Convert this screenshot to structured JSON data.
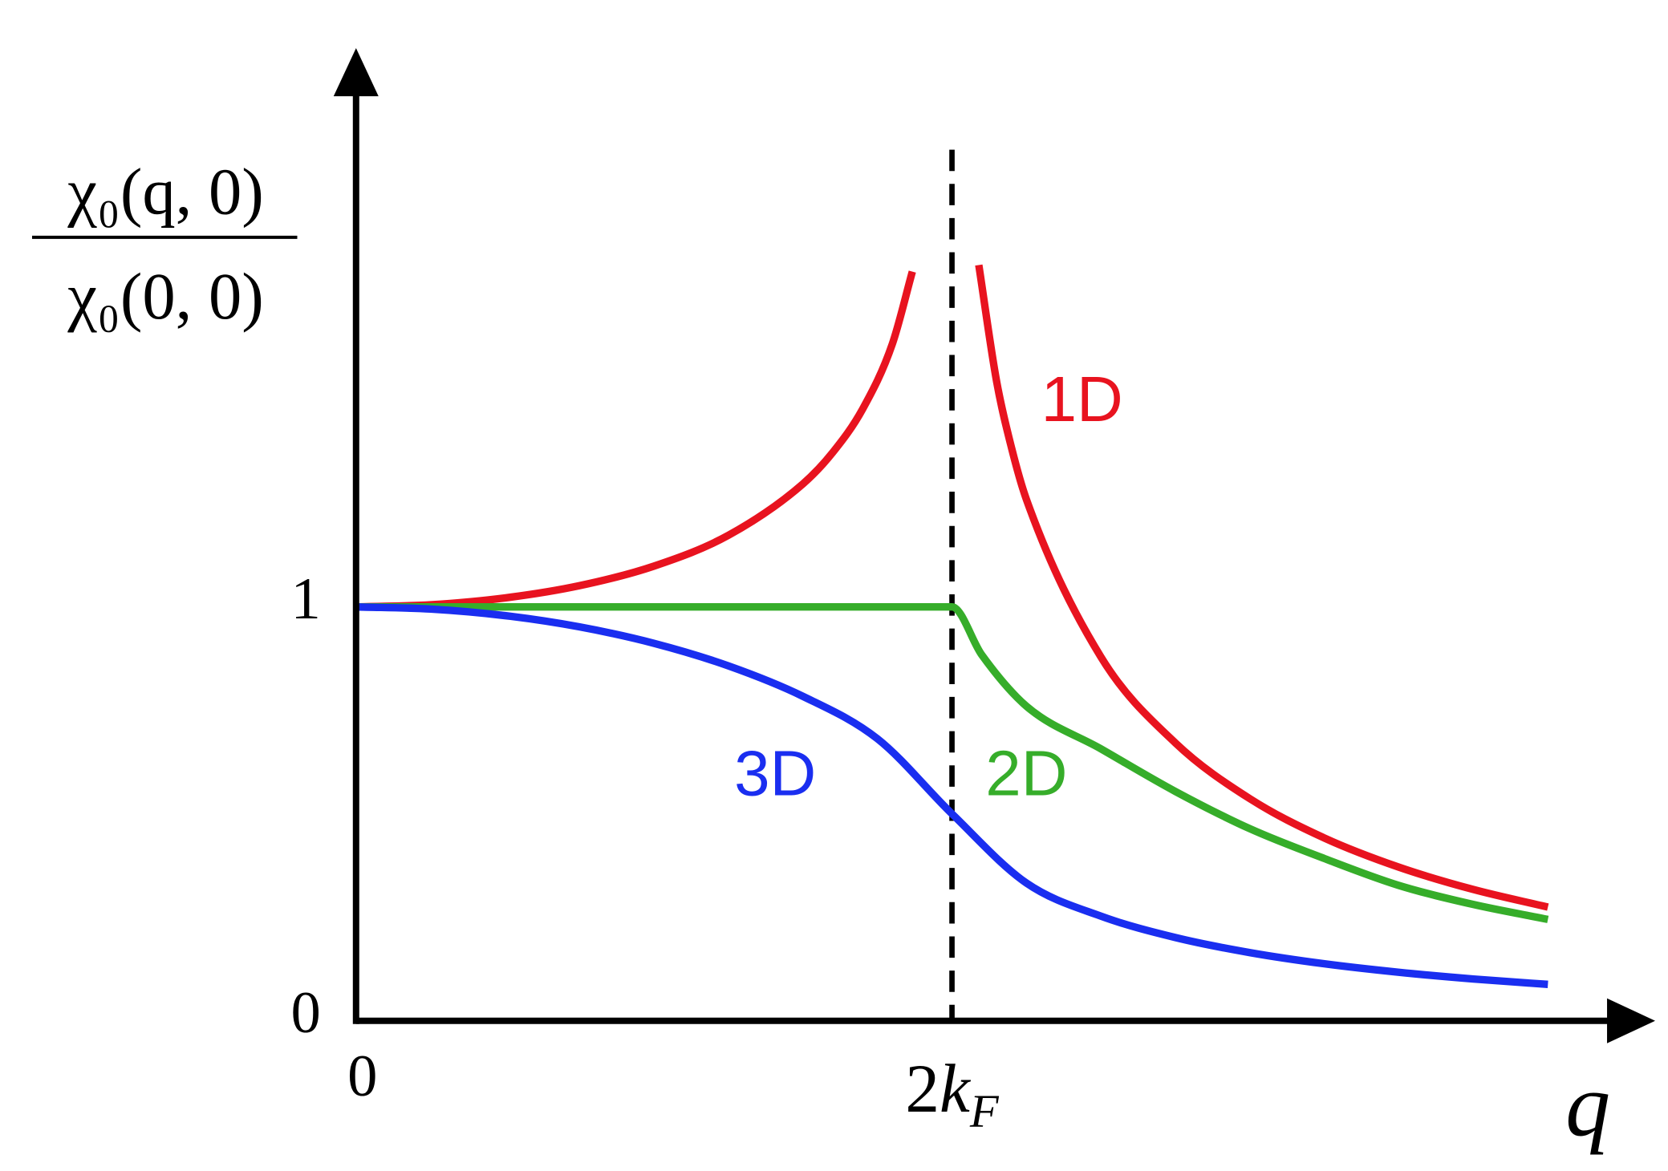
{
  "chart_data": {
    "type": "line",
    "x_label": "q",
    "y_label": {
      "numerator": "χ₀(q, 0)",
      "denominator": "χ₀(0, 0)"
    },
    "xlim": [
      0,
      4.36
    ],
    "ylim": [
      0,
      2.35
    ],
    "xticks": [
      0,
      {
        "value": 2,
        "label": "2kF"
      }
    ],
    "yticks": [
      0,
      1
    ],
    "vlines": [
      2
    ],
    "series": [
      {
        "name": "1D",
        "color": "#e8131f",
        "x": [
          0,
          0.25,
          0.5,
          0.75,
          1,
          1.25,
          1.5,
          1.6,
          1.7,
          1.8,
          1.867,
          2,
          2.09,
          2.15,
          2.2,
          2.25,
          2.5,
          2.75,
          3,
          3.25,
          3.5,
          3.75,
          4
        ],
        "values": [
          1,
          1.0052,
          1.0217,
          1.0513,
          1.0986,
          1.1731,
          1.2973,
          1.3733,
          1.4778,
          1.6357,
          1.81,
          null,
          1.826,
          1.544,
          1.3839,
          1.2592,
          0.8789,
          0.6712,
          0.5365,
          0.4416,
          0.3712,
          0.3172,
          0.2747
        ]
      },
      {
        "name": "2D",
        "color": "#36ad2a",
        "x": [
          0,
          2,
          2.1,
          2.25,
          2.5,
          2.75,
          3,
          3.25,
          3.5,
          3.75,
          4
        ],
        "values": [
          1,
          1,
          0.884,
          0.76,
          0.657,
          0.554,
          0.464,
          0.392,
          0.327,
          0.281,
          0.245
        ]
      },
      {
        "name": "3D",
        "color": "#1a2ef0",
        "x": [
          0,
          0.25,
          0.5,
          0.75,
          1,
          1.25,
          1.5,
          1.75,
          2,
          2.25,
          2.5,
          2.75,
          3,
          3.25,
          3.5,
          3.75,
          4
        ],
        "values": [
          1,
          0.9948,
          0.9789,
          0.9517,
          0.912,
          0.8574,
          0.7838,
          0.6813,
          0.5,
          0.3328,
          0.2528,
          0.2011,
          0.1647,
          0.1377,
          0.1172,
          0.101,
          0.088
        ]
      }
    ]
  }
}
